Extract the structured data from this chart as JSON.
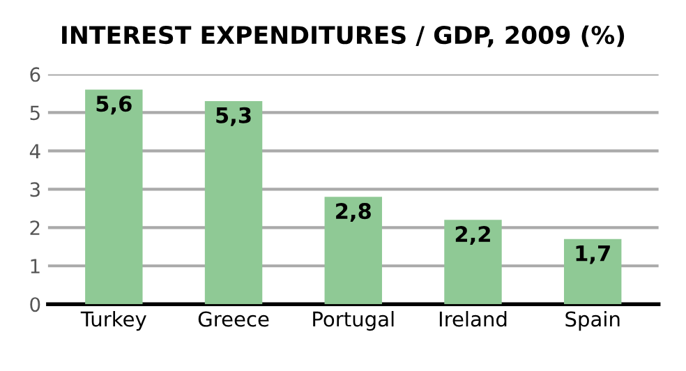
{
  "chart_data": {
    "type": "bar",
    "title": "INTEREST EXPENDITURES / GDP, 2009 (%)",
    "categories": [
      "Turkey",
      "Greece",
      "Portugal",
      "Ireland",
      "Spain"
    ],
    "values": [
      5.6,
      5.3,
      2.8,
      2.2,
      1.7
    ],
    "value_labels": [
      "5,6",
      "5,3",
      "2,8",
      "2,2",
      "1,7"
    ],
    "color": "#8fc995",
    "ylim": [
      0,
      6
    ],
    "yticks": [
      0,
      1,
      2,
      3,
      4,
      5,
      6
    ],
    "grid": "y"
  }
}
